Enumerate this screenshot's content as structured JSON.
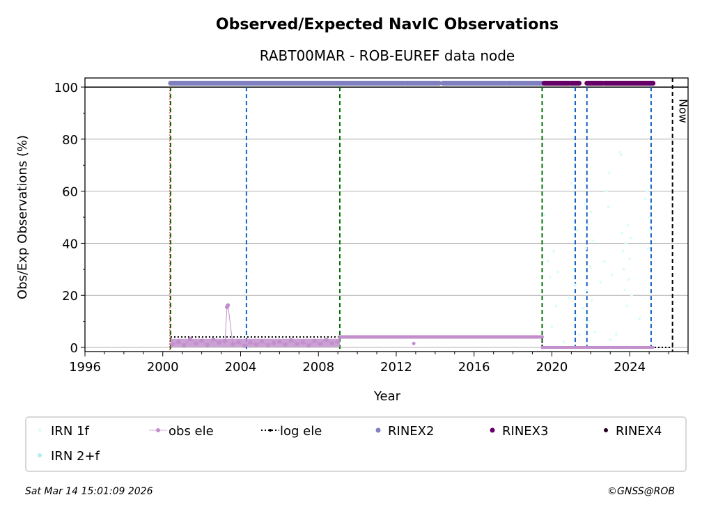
{
  "chart_data": {
    "type": "scatter",
    "title": "Observed/Expected NavIC Observations",
    "subtitle": "RABT00MAR - ROB-EUREF data node",
    "xlabel": "Year",
    "ylabel": "Obs/Exp Observations (%)",
    "xlim": [
      1996,
      2027
    ],
    "ylim": [
      -1.6,
      103.5
    ],
    "xticks": [
      1996,
      2000,
      2004,
      2008,
      2012,
      2016,
      2020,
      2024
    ],
    "yticks": [
      0,
      20,
      40,
      60,
      80,
      100
    ],
    "grid": "horizontal",
    "now_label": "Now",
    "now_x": 2026.2,
    "green_lines": [
      2000.4,
      2009.1,
      2019.5
    ],
    "blue_lines": [
      2004.3,
      2021.2,
      2021.8,
      2025.1
    ],
    "red_lines": [
      2000.4
    ],
    "rinex2": {
      "name": "RINEX2",
      "color": "#8080c0",
      "y": 101.5,
      "ranges": [
        [
          2000.4,
          2012.4
        ],
        [
          2012.5,
          2014.2
        ],
        [
          2014.4,
          2017.6
        ],
        [
          2017.7,
          2019.5
        ]
      ]
    },
    "rinex3": {
      "name": "RINEX3",
      "color": "#660066",
      "y": 101.5,
      "ranges": [
        [
          2019.6,
          2020.9
        ],
        [
          2021.0,
          2021.4
        ],
        [
          2021.8,
          2022.6
        ],
        [
          2022.7,
          2025.2
        ]
      ]
    },
    "rinex4": {
      "name": "RINEX4",
      "color": "#220022"
    },
    "log_ele": {
      "name": "log ele",
      "color": "#000000",
      "points": [
        [
          2000.4,
          4
        ],
        [
          2019.5,
          4
        ],
        [
          2019.5,
          0
        ],
        [
          2026.2,
          0
        ]
      ]
    },
    "obs_ele": {
      "name": "obs ele",
      "color": "#c28fcc",
      "early": [
        [
          2000.5,
          1.2
        ],
        [
          2000.8,
          2.1
        ],
        [
          2001.1,
          0.8
        ],
        [
          2001.4,
          3.2
        ],
        [
          2001.7,
          1.5
        ],
        [
          2002.0,
          2.6
        ],
        [
          2002.3,
          0.9
        ],
        [
          2002.6,
          3.0
        ],
        [
          2002.9,
          1.8
        ],
        [
          2003.2,
          2.4
        ],
        [
          2003.3,
          15.5
        ],
        [
          2003.35,
          16.2
        ],
        [
          2003.6,
          1.2
        ],
        [
          2003.9,
          2.0
        ],
        [
          2004.2,
          0.6
        ],
        [
          2004.5,
          1.9
        ],
        [
          2004.8,
          1.1
        ],
        [
          2005.1,
          2.3
        ],
        [
          2005.4,
          0.9
        ],
        [
          2005.7,
          1.7
        ],
        [
          2006.0,
          2.2
        ],
        [
          2006.3,
          1.0
        ],
        [
          2006.6,
          2.8
        ],
        [
          2006.9,
          1.4
        ],
        [
          2007.2,
          2.0
        ],
        [
          2007.5,
          0.8
        ],
        [
          2007.8,
          2.5
        ],
        [
          2008.1,
          1.3
        ],
        [
          2008.4,
          2.9
        ],
        [
          2008.7,
          1.6
        ],
        [
          2009.0,
          2.2
        ]
      ],
      "flat": {
        "y": 4,
        "ranges": [
          [
            2009.1,
            2019.5
          ]
        ]
      },
      "late": {
        "y": 0,
        "ranges": [
          [
            2019.5,
            2025.2
          ]
        ]
      },
      "outliers": [
        [
          2012.9,
          1.5
        ]
      ]
    },
    "irn1f": {
      "name": "IRN 1f",
      "color": "#ddfbfb",
      "points": [
        [
          2019.6,
          51
        ],
        [
          2019.8,
          33
        ],
        [
          2019.9,
          27
        ],
        [
          2020.0,
          8
        ],
        [
          2020.1,
          37
        ],
        [
          2020.2,
          16
        ],
        [
          2020.3,
          29
        ],
        [
          2020.6,
          2
        ],
        [
          2020.9,
          19
        ],
        [
          2021.0,
          63
        ],
        [
          2021.1,
          30
        ],
        [
          2021.2,
          24
        ],
        [
          2021.25,
          12
        ],
        [
          2021.3,
          45
        ],
        [
          2021.4,
          5
        ],
        [
          2021.6,
          15
        ],
        [
          2021.7,
          55
        ],
        [
          2021.75,
          38
        ],
        [
          2021.8,
          22
        ],
        [
          2021.85,
          47
        ],
        [
          2021.9,
          10
        ],
        [
          2021.95,
          31
        ],
        [
          2022.0,
          52
        ],
        [
          2022.05,
          18
        ],
        [
          2022.1,
          41
        ],
        [
          2022.2,
          6
        ],
        [
          2022.5,
          25
        ],
        [
          2022.7,
          33
        ],
        [
          2022.8,
          60
        ],
        [
          2022.9,
          54
        ],
        [
          2022.95,
          67
        ],
        [
          2023.0,
          3
        ],
        [
          2023.1,
          28
        ],
        [
          2023.3,
          5
        ],
        [
          2023.5,
          75
        ],
        [
          2023.55,
          74
        ],
        [
          2023.6,
          44
        ],
        [
          2023.65,
          37
        ],
        [
          2023.7,
          30
        ],
        [
          2023.75,
          22
        ],
        [
          2023.8,
          40
        ],
        [
          2023.85,
          16
        ],
        [
          2023.9,
          47
        ],
        [
          2023.95,
          26
        ],
        [
          2024.0,
          34
        ],
        [
          2024.05,
          42
        ],
        [
          2024.1,
          20
        ],
        [
          2024.5,
          11
        ],
        [
          2024.8,
          57
        ],
        [
          2024.9,
          60
        ],
        [
          2025.0,
          50
        ],
        [
          2025.05,
          45
        ],
        [
          2025.1,
          55
        ],
        [
          2024.95,
          38
        ]
      ]
    },
    "irn2f": {
      "name": "IRN 2+f",
      "color": "#aef0f0"
    }
  },
  "legend": {
    "irn1f": "IRN 1f",
    "irn2f": "IRN 2+f",
    "obs_ele": "obs ele",
    "log_ele": "log ele",
    "rinex2": "RINEX2",
    "rinex3": "RINEX3",
    "rinex4": "RINEX4"
  },
  "footer": {
    "timestamp": "Sat Mar 14 15:01:09 2026",
    "copyright": "©GNSS@ROB"
  }
}
